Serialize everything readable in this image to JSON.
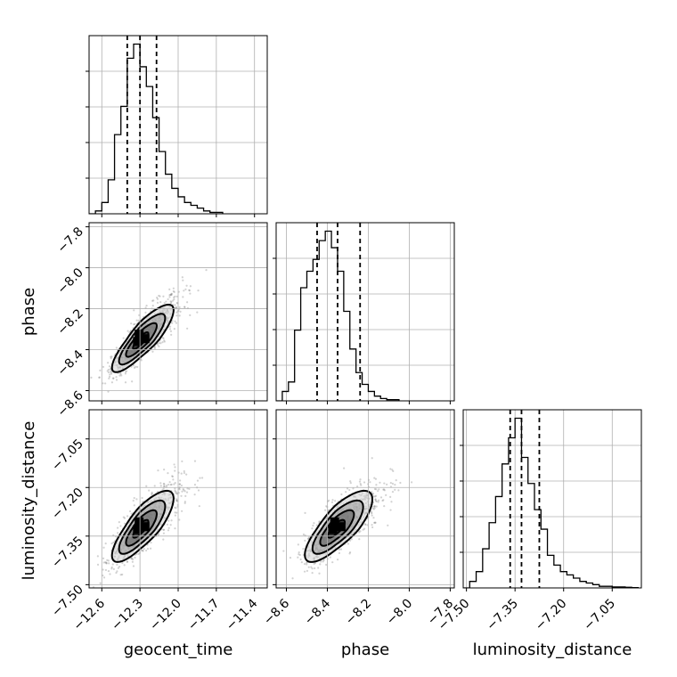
{
  "chart_data": {
    "type": "corner",
    "parameters": [
      "geocent_time",
      "phase",
      "luminosity_distance"
    ],
    "grid": true,
    "axes": {
      "geocent_time": {
        "range": [
          -12.7,
          -11.3
        ],
        "ticks": [
          -12.6,
          -12.3,
          -12.0,
          -11.7,
          -11.4
        ],
        "tick_labels": [
          "−12.6",
          "−12.3",
          "−12.0",
          "−11.7",
          "−11.4"
        ],
        "label": "geocent_time"
      },
      "phase": {
        "range": [
          -8.65,
          -7.78
        ],
        "ticks": [
          -8.6,
          -8.4,
          -8.2,
          -8.0,
          -7.8
        ],
        "tick_labels": [
          "−8.6",
          "−8.4",
          "−8.2",
          "−8.0",
          "−7.8"
        ],
        "label": "phase"
      },
      "luminosity_distance": {
        "range": [
          -7.51,
          -6.96
        ],
        "ticks": [
          -7.5,
          -7.35,
          -7.2,
          -7.05
        ],
        "tick_labels": [
          "−7.50",
          "−7.35",
          "−7.20",
          "−7.05"
        ],
        "label": "luminosity_distance"
      }
    },
    "histograms": [
      {
        "parameter": "geocent_time",
        "bins": [
          -12.7,
          -12.65,
          -12.6,
          -12.55,
          -12.5,
          -12.45,
          -12.4,
          -12.35,
          -12.3,
          -12.25,
          -12.2,
          -12.15,
          -12.1,
          -12.05,
          -12.0,
          -11.95,
          -11.9,
          -11.85,
          -11.8,
          -11.75,
          -11.7,
          -11.65
        ],
        "counts": [
          0,
          1,
          4,
          12,
          28,
          38,
          55,
          60,
          52,
          45,
          34,
          22,
          14,
          9,
          6,
          4,
          3,
          2,
          1,
          0.5,
          0.5
        ],
        "quantiles": [
          -12.4,
          -12.3,
          -12.17
        ]
      },
      {
        "parameter": "phase",
        "bins": [
          -8.65,
          -8.62,
          -8.59,
          -8.56,
          -8.53,
          -8.5,
          -8.47,
          -8.44,
          -8.41,
          -8.38,
          -8.35,
          -8.32,
          -8.29,
          -8.26,
          -8.23,
          -8.2,
          -8.17,
          -8.14,
          -8.11,
          -8.08,
          -8.05
        ],
        "counts": [
          0,
          4,
          8,
          30,
          48,
          55,
          60,
          68,
          72,
          65,
          55,
          38,
          22,
          12,
          7,
          4,
          2,
          1,
          0.5,
          0.5
        ],
        "quantiles": [
          -8.45,
          -8.35,
          -8.24
        ]
      },
      {
        "parameter": "luminosity_distance",
        "bins": [
          -7.51,
          -7.49,
          -7.47,
          -7.45,
          -7.43,
          -7.41,
          -7.39,
          -7.37,
          -7.35,
          -7.33,
          -7.31,
          -7.29,
          -7.27,
          -7.25,
          -7.23,
          -7.21,
          -7.19,
          -7.17,
          -7.15,
          -7.13,
          -7.11,
          -7.09,
          -7.07,
          -7.05,
          -7.03,
          -7.01,
          -6.99,
          -6.97
        ],
        "counts": [
          0,
          2,
          5,
          12,
          20,
          28,
          38,
          46,
          52,
          40,
          32,
          24,
          18,
          10,
          7,
          5,
          4,
          3,
          2,
          1.5,
          1,
          0.5,
          0.5,
          0.3,
          0.3,
          0.2,
          0.1
        ],
        "quantiles": [
          -7.365,
          -7.33,
          -7.275
        ]
      }
    ],
    "scatter_pairs": [
      {
        "x": "geocent_time",
        "y": "phase",
        "mean": [
          -12.3,
          -8.36
        ],
        "sd": [
          0.11,
          0.075
        ],
        "rho": 0.85
      },
      {
        "x": "geocent_time",
        "y": "luminosity_distance",
        "mean": [
          -12.3,
          -7.33
        ],
        "sd": [
          0.11,
          0.05
        ],
        "rho": 0.8
      },
      {
        "x": "phase",
        "y": "luminosity_distance",
        "mean": [
          -8.36,
          -7.33
        ],
        "sd": [
          0.075,
          0.05
        ],
        "rho": 0.78
      }
    ],
    "contour_levels_sigma": [
      0.5,
      1.0,
      1.5,
      2.0
    ]
  }
}
